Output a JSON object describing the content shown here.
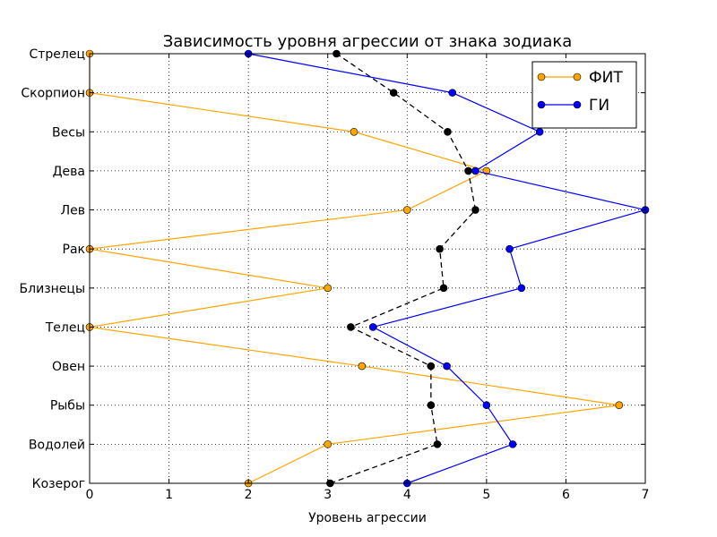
{
  "chart_data": {
    "type": "line",
    "title": "Зависимость уровня агрессии от знака зодиака",
    "xlabel": "Уровень агрессии",
    "ylabel": "",
    "xlim": [
      0,
      7
    ],
    "x_ticks": [
      "0",
      "1",
      "2",
      "3",
      "4",
      "5",
      "6",
      "7"
    ],
    "categories": [
      "Козерог",
      "Водолей",
      "Рыбы",
      "Овен",
      "Телец",
      "Близнецы",
      "Рак",
      "Лев",
      "Дева",
      "Весы",
      "Скорпион",
      "Стрелец"
    ],
    "grid": true,
    "legend_position": "top-right",
    "series": [
      {
        "name": "ФИТ",
        "color": "#FFA500",
        "style": "solid",
        "values": [
          2.0,
          3.0,
          6.67,
          3.43,
          0.0,
          3.0,
          0.0,
          4.0,
          5.0,
          3.33,
          0.0,
          0.0
        ]
      },
      {
        "name": "ГИ",
        "color": "#0000FF",
        "style": "solid",
        "values": [
          4.0,
          5.33,
          5.0,
          4.5,
          3.57,
          5.44,
          5.29,
          7.0,
          4.86,
          5.67,
          4.57,
          2.0
        ]
      },
      {
        "name": "",
        "color": "#000000",
        "style": "dashed",
        "values": [
          3.03,
          4.38,
          4.3,
          4.3,
          3.29,
          4.46,
          4.41,
          4.86,
          4.77,
          4.51,
          3.83,
          3.11
        ]
      }
    ]
  }
}
